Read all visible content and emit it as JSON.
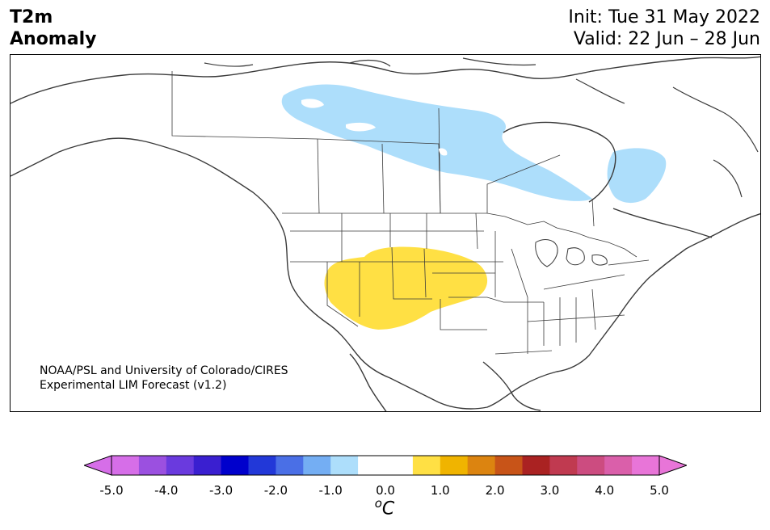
{
  "title": {
    "line1": "T2m",
    "line2": "Anomaly"
  },
  "dates": {
    "init": "Init: Tue 31 May 2022",
    "valid": "Valid: 22 Jun – 28 Jun"
  },
  "credit": {
    "line1": "NOAA/PSL and University of Colorado/CIRES",
    "line2": "Experimental LIM Forecast (v1.2)"
  },
  "colorbar": {
    "unit_base": "C",
    "unit_sup": "o",
    "ticks": [
      "-5.0",
      "-4.0",
      "-3.0",
      "-2.0",
      "-1.0",
      "0.0",
      "1.0",
      "2.0",
      "3.0",
      "4.0",
      "5.0"
    ],
    "colors": [
      "#d66ee8",
      "#9b50e0",
      "#6a3ade",
      "#3a1fd0",
      "#0000cc",
      "#2238d8",
      "#4a6fe6",
      "#74aef3",
      "#addefb",
      "#ffffff",
      "#ffffff",
      "#ffe044",
      "#f0b400",
      "#dc8410",
      "#c85418",
      "#aa2222",
      "#c03a50",
      "#cc4c80",
      "#da5faa",
      "#e875d8"
    ],
    "under_color": "#d66ee8",
    "over_color": "#e875d8"
  },
  "anomalies": [
    {
      "region": "Canada (Northwest Territories / Hudson Bay)",
      "sign": "negative",
      "color": "#addefb"
    },
    {
      "region": "Quebec / Labrador",
      "sign": "negative",
      "color": "#addefb"
    },
    {
      "region": "US Southwest / Four Corners / Central Plains",
      "sign": "positive",
      "color": "#ffe044"
    }
  ]
}
